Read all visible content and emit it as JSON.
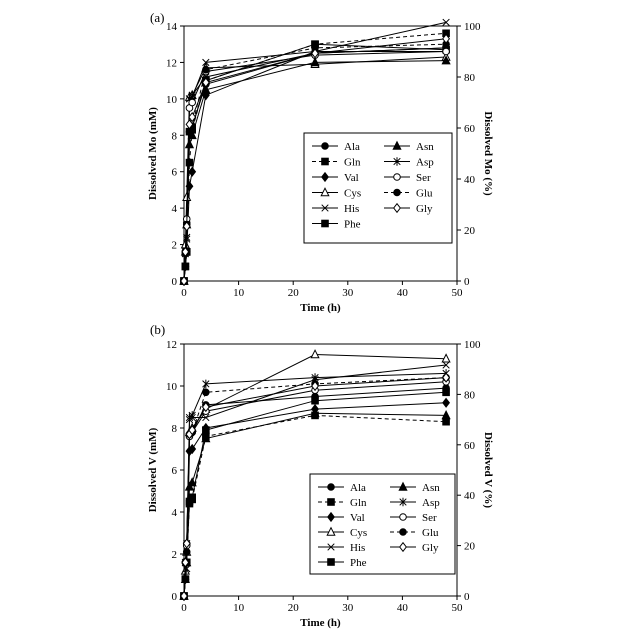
{
  "chart_data": [
    {
      "panel_label": "(a)",
      "type": "line",
      "xlabel": "Time (h)",
      "ylabel": "Dissolved Mo (mM)",
      "ylabel_right": "Dissolved Mo (%)",
      "xlim": [
        0,
        50
      ],
      "ylim": [
        0,
        14
      ],
      "ylim_right": [
        0,
        100
      ],
      "xticks": [
        "0",
        "10",
        "20",
        "30",
        "40",
        "50"
      ],
      "yticks": [
        "0",
        "2",
        "4",
        "6",
        "8",
        "10",
        "12",
        "14"
      ],
      "yticks_right": [
        "0",
        "20",
        "40",
        "60",
        "80",
        "100"
      ],
      "grid": false,
      "legend_position": "center-right",
      "x": [
        0,
        0.25,
        0.5,
        1,
        1.5,
        4,
        24,
        48
      ],
      "series": [
        {
          "name": "Ala",
          "marker": "circle-filled",
          "dash": false,
          "values": [
            0,
            1.5,
            3.2,
            8.2,
            8.5,
            10.8,
            12.5,
            12.8
          ]
        },
        {
          "name": "Gln",
          "marker": "square-filled",
          "dash": true,
          "values": [
            0,
            0.8,
            1.6,
            6.5,
            8.3,
            11.0,
            13.0,
            13.6
          ]
        },
        {
          "name": "Val",
          "marker": "diamond-filled",
          "dash": false,
          "values": [
            0,
            0.8,
            1.6,
            5.2,
            6.0,
            10.2,
            12.6,
            12.6
          ]
        },
        {
          "name": "Cys",
          "marker": "triangle-open",
          "dash": false,
          "values": [
            0,
            2.0,
            4.6,
            10.1,
            10.2,
            11.7,
            11.9,
            12.3
          ]
        },
        {
          "name": "His",
          "marker": "x",
          "dash": false,
          "values": [
            0,
            1.6,
            2.3,
            10.0,
            10.1,
            12.0,
            12.6,
            14.2
          ]
        },
        {
          "name": "Phe",
          "marker": "square-filled",
          "dash": false,
          "values": [
            0,
            0.8,
            1.6,
            8.2,
            8.4,
            11.0,
            13.0,
            12.7
          ]
        },
        {
          "name": "Asn",
          "marker": "triangle-filled",
          "dash": false,
          "values": [
            0,
            1.6,
            3.1,
            7.5,
            8.0,
            10.5,
            12.0,
            12.1
          ]
        },
        {
          "name": "Asp",
          "marker": "asterisk",
          "dash": false,
          "values": [
            0,
            1.5,
            2.4,
            10.0,
            10.2,
            11.2,
            12.5,
            12.8
          ]
        },
        {
          "name": "Ser",
          "marker": "circle-open",
          "dash": false,
          "values": [
            0,
            1.6,
            3.4,
            9.5,
            9.8,
            11.5,
            12.4,
            12.6
          ]
        },
        {
          "name": "Glu",
          "marker": "circle-filled",
          "dash": true,
          "values": [
            0,
            1.6,
            3.1,
            8.2,
            8.5,
            11.6,
            12.8,
            13.0
          ]
        },
        {
          "name": "Gly",
          "marker": "diamond-open",
          "dash": false,
          "values": [
            0,
            1.6,
            3.0,
            8.6,
            9.0,
            10.9,
            12.5,
            13.3
          ]
        }
      ]
    },
    {
      "panel_label": "(b)",
      "type": "line",
      "xlabel": "Time (h)",
      "ylabel": "Dissolved V (mM)",
      "ylabel_right": "Dissolved V (%)",
      "xlim": [
        0,
        50
      ],
      "ylim": [
        0,
        12
      ],
      "ylim_right": [
        0,
        100
      ],
      "xticks": [
        "0",
        "10",
        "20",
        "30",
        "40",
        "50"
      ],
      "yticks": [
        "0",
        "2",
        "4",
        "6",
        "8",
        "10",
        "12"
      ],
      "yticks_right": [
        "0",
        "20",
        "40",
        "60",
        "80",
        "100"
      ],
      "grid": false,
      "legend_position": "bottom-right",
      "x": [
        0,
        0.25,
        0.5,
        1,
        1.5,
        4,
        24,
        48
      ],
      "series": [
        {
          "name": "Ala",
          "marker": "circle-filled",
          "dash": false,
          "values": [
            0,
            0.8,
            2.5,
            7.7,
            7.8,
            9.1,
            9.5,
            9.9
          ]
        },
        {
          "name": "Gln",
          "marker": "square-filled",
          "dash": true,
          "values": [
            0,
            0.8,
            1.6,
            4.4,
            4.6,
            7.6,
            8.6,
            8.3
          ]
        },
        {
          "name": "Val",
          "marker": "diamond-filled",
          "dash": false,
          "values": [
            0,
            0.8,
            1.6,
            6.9,
            7.0,
            8.0,
            8.9,
            9.2
          ]
        },
        {
          "name": "Cys",
          "marker": "triangle-open",
          "dash": false,
          "values": [
            0,
            1.2,
            2.1,
            7.8,
            8.0,
            8.9,
            11.5,
            11.3
          ]
        },
        {
          "name": "His",
          "marker": "x",
          "dash": false,
          "values": [
            0,
            0.8,
            1.3,
            8.4,
            8.5,
            8.5,
            10.3,
            11.0
          ]
        },
        {
          "name": "Phe",
          "marker": "square-filled",
          "dash": false,
          "values": [
            0,
            0.8,
            1.6,
            4.5,
            4.7,
            7.9,
            9.3,
            9.7
          ]
        },
        {
          "name": "Asn",
          "marker": "triangle-filled",
          "dash": false,
          "values": [
            0,
            0.8,
            1.6,
            5.2,
            5.4,
            7.5,
            8.7,
            8.6
          ]
        },
        {
          "name": "Asp",
          "marker": "asterisk",
          "dash": false,
          "values": [
            0,
            1.6,
            2.5,
            8.5,
            8.6,
            10.1,
            10.4,
            10.6
          ]
        },
        {
          "name": "Ser",
          "marker": "circle-open",
          "dash": false,
          "values": [
            0,
            1.6,
            2.4,
            7.6,
            7.8,
            8.8,
            9.8,
            10.2
          ]
        },
        {
          "name": "Glu",
          "marker": "circle-filled",
          "dash": true,
          "values": [
            0,
            1.6,
            2.1,
            7.7,
            7.8,
            9.7,
            10.1,
            10.4
          ]
        },
        {
          "name": "Gly",
          "marker": "diamond-open",
          "dash": false,
          "values": [
            0,
            1.6,
            2.5,
            7.7,
            7.9,
            9.0,
            10.0,
            10.4
          ]
        }
      ]
    }
  ]
}
